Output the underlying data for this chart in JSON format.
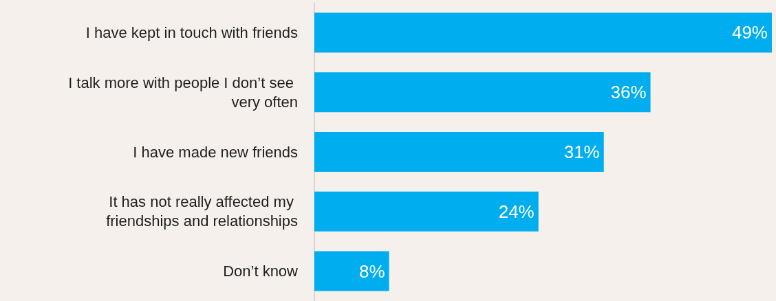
{
  "chart_data": {
    "type": "bar",
    "orientation": "horizontal",
    "categories": [
      "I have kept in touch with friends",
      "I talk more with people I don’t see very often",
      "I have made new friends",
      "It has not really affected my friendships and relationships",
      "Don’t know"
    ],
    "values": [
      49,
      36,
      31,
      24,
      8
    ],
    "value_labels": [
      "49%",
      "36%",
      "31%",
      "24%",
      "8%"
    ],
    "color": "#00aeef"
  }
}
